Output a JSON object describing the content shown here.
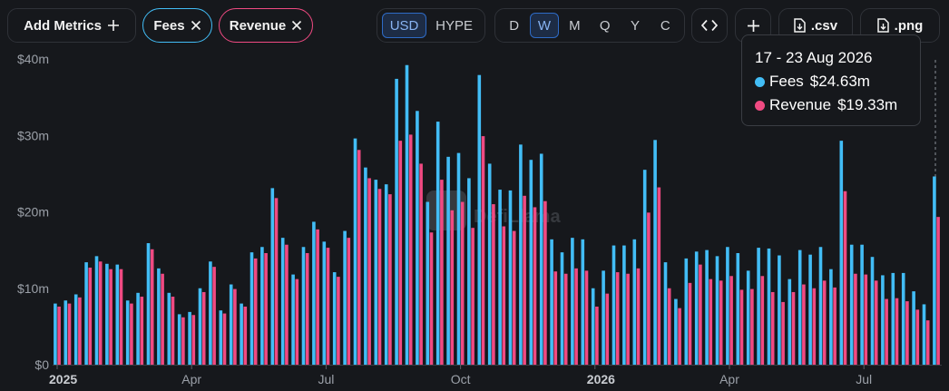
{
  "toolbar": {
    "add_metrics_label": "Add Metrics",
    "fees_label": "Fees",
    "revenue_label": "Revenue",
    "currency_options": [
      "USD",
      "HYPE"
    ],
    "currency_selected": "USD",
    "period_options": [
      "D",
      "W",
      "M",
      "Q",
      "Y",
      "C"
    ],
    "period_selected": "W",
    "csv_label": ".csv",
    "png_label": ".png"
  },
  "colors": {
    "fees": "#42bdf6",
    "revenue": "#f04a82",
    "accent": "#2e6bc6",
    "background": "#16181c"
  },
  "tooltip": {
    "date": "17 - 23 Aug 2026",
    "fees_label": "Fees",
    "fees_value": "$24.63m",
    "revenue_label": "Revenue",
    "revenue_value": "$19.33m"
  },
  "watermark": "DefiLlama",
  "chart_data": {
    "type": "bar",
    "y_unit": "USD millions",
    "ylim": [
      0,
      40
    ],
    "y_ticks": [
      0,
      10,
      20,
      30,
      40
    ],
    "y_tick_labels": [
      "$0",
      "$10m",
      "$20m",
      "$30m",
      "$40m"
    ],
    "x_tick_labels": [
      "2025",
      "Apr",
      "Jul",
      "Oct",
      "2026",
      "Apr",
      "Jul"
    ],
    "x_tick_bar_index": [
      0,
      13,
      26,
      39,
      52,
      65,
      78
    ],
    "x_tick_bold": [
      true,
      false,
      false,
      false,
      true,
      false,
      false
    ],
    "grid": false,
    "legend": "top-left toggle pills",
    "series": [
      {
        "name": "Fees",
        "values": [
          8.0,
          8.4,
          9.2,
          13.4,
          14.2,
          13.2,
          13.1,
          8.4,
          9.4,
          15.9,
          12.6,
          9.4,
          6.6,
          6.9,
          10.0,
          13.5,
          7.1,
          10.5,
          8.0,
          14.7,
          15.4,
          23.1,
          16.6,
          11.8,
          15.4,
          18.7,
          16.1,
          12.1,
          17.5,
          29.6,
          25.8,
          24.2,
          23.6,
          37.4,
          39.2,
          33.2,
          21.3,
          31.8,
          27.2,
          27.7,
          24.4,
          37.9,
          26.3,
          22.9,
          22.8,
          28.8,
          26.8,
          27.6,
          16.4,
          14.7,
          16.6,
          16.4,
          10.0,
          12.3,
          15.6,
          15.6,
          16.4,
          25.5,
          29.4,
          13.4,
          8.6,
          13.9,
          14.8,
          15.0,
          14.2,
          15.4,
          14.6,
          12.3,
          15.3,
          15.2,
          14.3,
          11.2,
          15.0,
          14.4,
          15.4,
          12.5,
          29.3,
          15.7,
          15.7,
          14.1,
          11.7,
          12.0,
          12.0,
          9.6,
          7.9,
          24.63
        ]
      },
      {
        "name": "Revenue",
        "values": [
          7.6,
          8.0,
          8.8,
          12.7,
          13.5,
          12.5,
          12.5,
          8.0,
          8.9,
          15.1,
          11.9,
          8.9,
          6.2,
          6.5,
          9.5,
          12.8,
          6.7,
          9.9,
          7.6,
          13.9,
          14.6,
          21.8,
          15.7,
          11.2,
          14.6,
          17.7,
          15.3,
          11.5,
          16.6,
          28.1,
          24.4,
          23.0,
          22.3,
          29.3,
          30.1,
          26.3,
          17.3,
          24.2,
          20.2,
          21.3,
          17.9,
          29.9,
          21.0,
          18.1,
          17.5,
          22.1,
          20.6,
          21.4,
          12.2,
          11.9,
          12.6,
          12.3,
          7.6,
          9.3,
          12.1,
          11.9,
          12.6,
          19.9,
          23.2,
          10.0,
          7.4,
          10.7,
          13.1,
          11.2,
          11.0,
          11.6,
          9.8,
          9.9,
          11.6,
          9.5,
          8.2,
          9.5,
          10.5,
          10.0,
          11.0,
          10.1,
          22.7,
          11.9,
          11.8,
          11.0,
          8.6,
          8.7,
          8.3,
          7.2,
          5.8,
          19.33
        ]
      }
    ]
  }
}
